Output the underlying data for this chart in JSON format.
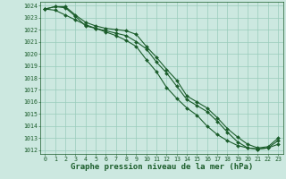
{
  "title": "Graphe pression niveau de la mer (hPa)",
  "background_color": "#cce8e0",
  "grid_color": "#99ccbb",
  "line_color": "#1a5c2a",
  "x_min": 0,
  "x_max": 23,
  "y_min": 1012,
  "y_max": 1024,
  "line1": {
    "x": [
      0,
      1,
      2,
      3,
      4,
      5,
      6,
      7,
      8,
      9,
      10,
      11,
      12,
      13,
      14,
      15,
      16,
      17,
      18,
      19,
      20,
      21,
      22,
      23
    ],
    "y": [
      1023.7,
      1023.9,
      1023.8,
      1023.1,
      1022.3,
      1022.1,
      1021.9,
      1021.7,
      1021.5,
      1021.0,
      1020.4,
      1019.3,
      1018.4,
      1017.3,
      1016.2,
      1015.7,
      1015.2,
      1014.4,
      1013.5,
      1012.7,
      1012.2,
      1012.1,
      1012.2,
      1012.8
    ]
  },
  "line2": {
    "x": [
      0,
      1,
      2,
      3,
      4,
      5,
      6,
      7,
      8,
      9,
      10,
      11,
      12,
      13,
      14,
      15,
      16,
      17,
      18,
      19,
      20,
      21,
      22,
      23
    ],
    "y": [
      1023.7,
      1023.9,
      1023.9,
      1023.2,
      1022.6,
      1022.3,
      1022.1,
      1022.0,
      1021.9,
      1021.6,
      1020.6,
      1019.7,
      1018.7,
      1017.8,
      1016.5,
      1016.0,
      1015.5,
      1014.7,
      1013.8,
      1013.1,
      1012.5,
      1012.2,
      1012.3,
      1013.0
    ]
  },
  "line3": {
    "x": [
      0,
      1,
      2,
      3,
      4,
      5,
      6,
      7,
      8,
      9,
      10,
      11,
      12,
      13,
      14,
      15,
      16,
      17,
      18,
      19,
      20,
      21,
      22,
      23
    ],
    "y": [
      1023.7,
      1023.6,
      1023.2,
      1022.8,
      1022.4,
      1022.1,
      1021.8,
      1021.5,
      1021.1,
      1020.6,
      1019.5,
      1018.5,
      1017.2,
      1016.3,
      1015.5,
      1014.9,
      1014.0,
      1013.3,
      1012.8,
      1012.4,
      1012.2,
      1012.1,
      1012.2,
      1012.5
    ]
  },
  "yticks": [
    1012,
    1013,
    1014,
    1015,
    1016,
    1017,
    1018,
    1019,
    1020,
    1021,
    1022,
    1023,
    1024
  ],
  "xticks": [
    0,
    1,
    2,
    3,
    4,
    5,
    6,
    7,
    8,
    9,
    10,
    11,
    12,
    13,
    14,
    15,
    16,
    17,
    18,
    19,
    20,
    21,
    22,
    23
  ],
  "marker": "D",
  "marker_size": 2.0,
  "line_width": 0.8,
  "title_fontsize": 6.5,
  "tick_fontsize": 4.8
}
